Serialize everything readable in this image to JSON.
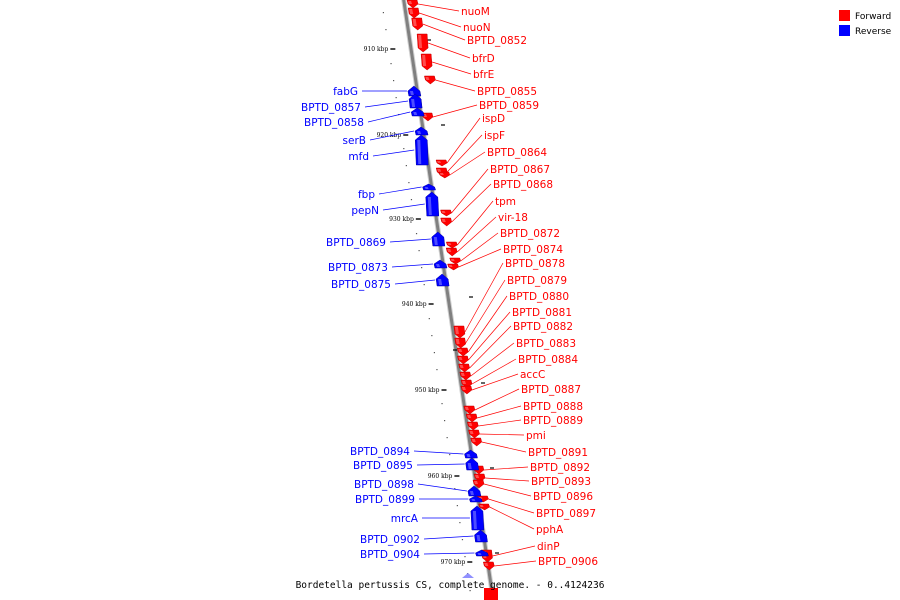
{
  "caption": "Bordetella pertussis CS, complete genome. - 0..4124236",
  "legend": [
    {
      "label": "Forward",
      "color": "#ff0000"
    },
    {
      "label": "Reverse",
      "color": "#0000ff"
    }
  ],
  "colors": {
    "forward": "#ff0000",
    "reverse": "#0000ff",
    "backbone": "#808080"
  },
  "ticks": [
    "910 kbp",
    "920 kbp",
    "930 kbp",
    "940 kbp",
    "950 kbp",
    "960 kbp",
    "970 kbp"
  ],
  "forward_genes": [
    "nuoM",
    "nuoN",
    "BPTD_0852",
    "bfrD",
    "bfrE",
    "BPTD_0855",
    "BPTD_0859",
    "ispD",
    "ispF",
    "BPTD_0864",
    "BPTD_0867",
    "BPTD_0868",
    "tpm",
    "vir-18",
    "BPTD_0872",
    "BPTD_0874",
    "BPTD_0878",
    "BPTD_0879",
    "BPTD_0880",
    "BPTD_0881",
    "BPTD_0882",
    "BPTD_0883",
    "BPTD_0884",
    "accC",
    "BPTD_0887",
    "BPTD_0888",
    "BPTD_0889",
    "pmi",
    "BPTD_0891",
    "BPTD_0892",
    "BPTD_0893",
    "BPTD_0896",
    "BPTD_0897",
    "pphA",
    "dinP",
    "BPTD_0906"
  ],
  "reverse_genes": [
    "fabG",
    "BPTD_0857",
    "BPTD_0858",
    "serB",
    "mfd",
    "fbp",
    "pepN",
    "BPTD_0869",
    "BPTD_0873",
    "BPTD_0875",
    "BPTD_0894",
    "BPTD_0895",
    "BPTD_0898",
    "BPTD_0899",
    "mrcA",
    "BPTD_0902",
    "BPTD_0904"
  ]
}
